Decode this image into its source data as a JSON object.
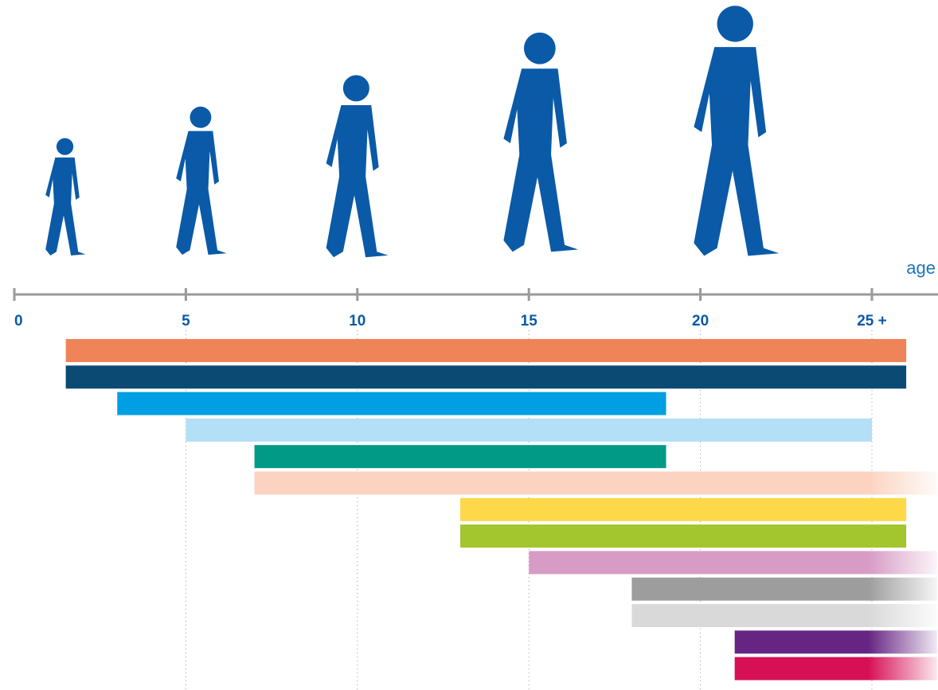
{
  "chart_data": {
    "type": "range-bar",
    "x_label": "age",
    "xlim": [
      0,
      26.9
    ],
    "xticks": [
      0,
      5,
      10,
      15,
      20,
      {
        "value": 25,
        "label": "25 +"
      }
    ],
    "grid": true,
    "series": [
      {
        "color": "#ef8459",
        "values": [
          1.5,
          26
        ],
        "fade": false
      },
      {
        "color": "#0a4a73",
        "values": [
          1.5,
          26
        ],
        "fade": false
      },
      {
        "color": "#009fe3",
        "values": [
          3,
          19
        ],
        "fade": false
      },
      {
        "color": "#b3dff7",
        "values": [
          5,
          25
        ],
        "fade": false
      },
      {
        "color": "#009a87",
        "values": [
          7,
          19
        ],
        "fade": false
      },
      {
        "color": "#fbd3c0",
        "values": [
          7,
          26.9
        ],
        "fade": true
      },
      {
        "color": "#fdd94a",
        "values": [
          13,
          26
        ],
        "fade": false
      },
      {
        "color": "#a3c52e",
        "values": [
          13,
          26
        ],
        "fade": false
      },
      {
        "color": "#d89bc6",
        "values": [
          15,
          26.9
        ],
        "fade": true
      },
      {
        "color": "#9d9d9d",
        "values": [
          18,
          26.9
        ],
        "fade": true
      },
      {
        "color": "#d9d9d9",
        "values": [
          18,
          26.9
        ],
        "fade": true
      },
      {
        "color": "#662483",
        "values": [
          21,
          26.9
        ],
        "fade": true
      },
      {
        "color": "#d70f55",
        "values": [
          21,
          26.9
        ],
        "fade": true
      }
    ]
  }
}
